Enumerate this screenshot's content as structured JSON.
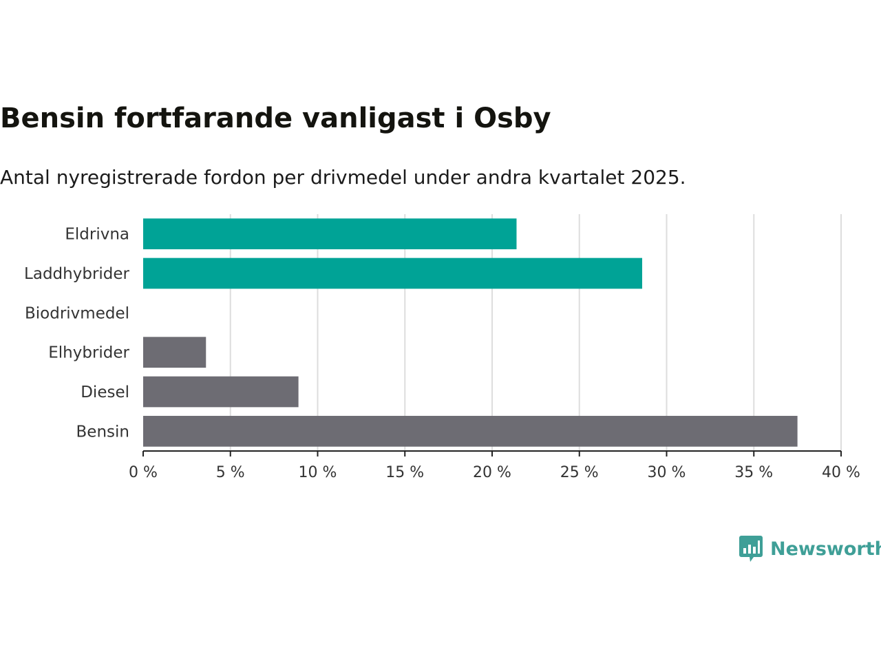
{
  "chart_data": {
    "type": "bar",
    "orientation": "horizontal",
    "title": "Bensin fortfarande vanligast i Osby",
    "subtitle": "Antal nyregistrerade fordon per drivmedel under andra kvartalet 2025.",
    "categories": [
      "Eldrivna",
      "Laddhybrider",
      "Biodrivmedel",
      "Elhybrider",
      "Diesel",
      "Bensin"
    ],
    "values": [
      21.4,
      28.6,
      0,
      3.6,
      8.9,
      37.5
    ],
    "bar_colors": [
      "#00a396",
      "#00a396",
      "#6d6c73",
      "#6d6c73",
      "#6d6c73",
      "#6d6c73"
    ],
    "xlim": [
      0,
      40
    ],
    "xticks": [
      0,
      5,
      10,
      15,
      20,
      25,
      30,
      35,
      40
    ],
    "xtick_labels": [
      "0 %",
      "5 %",
      "10 %",
      "15 %",
      "20 %",
      "25 %",
      "30 %",
      "35 %",
      "40 %"
    ],
    "grid": true
  },
  "brand": {
    "name": "Newsworthy",
    "color": "#3f9f97",
    "icon": "chart-speech-bubble-icon"
  }
}
